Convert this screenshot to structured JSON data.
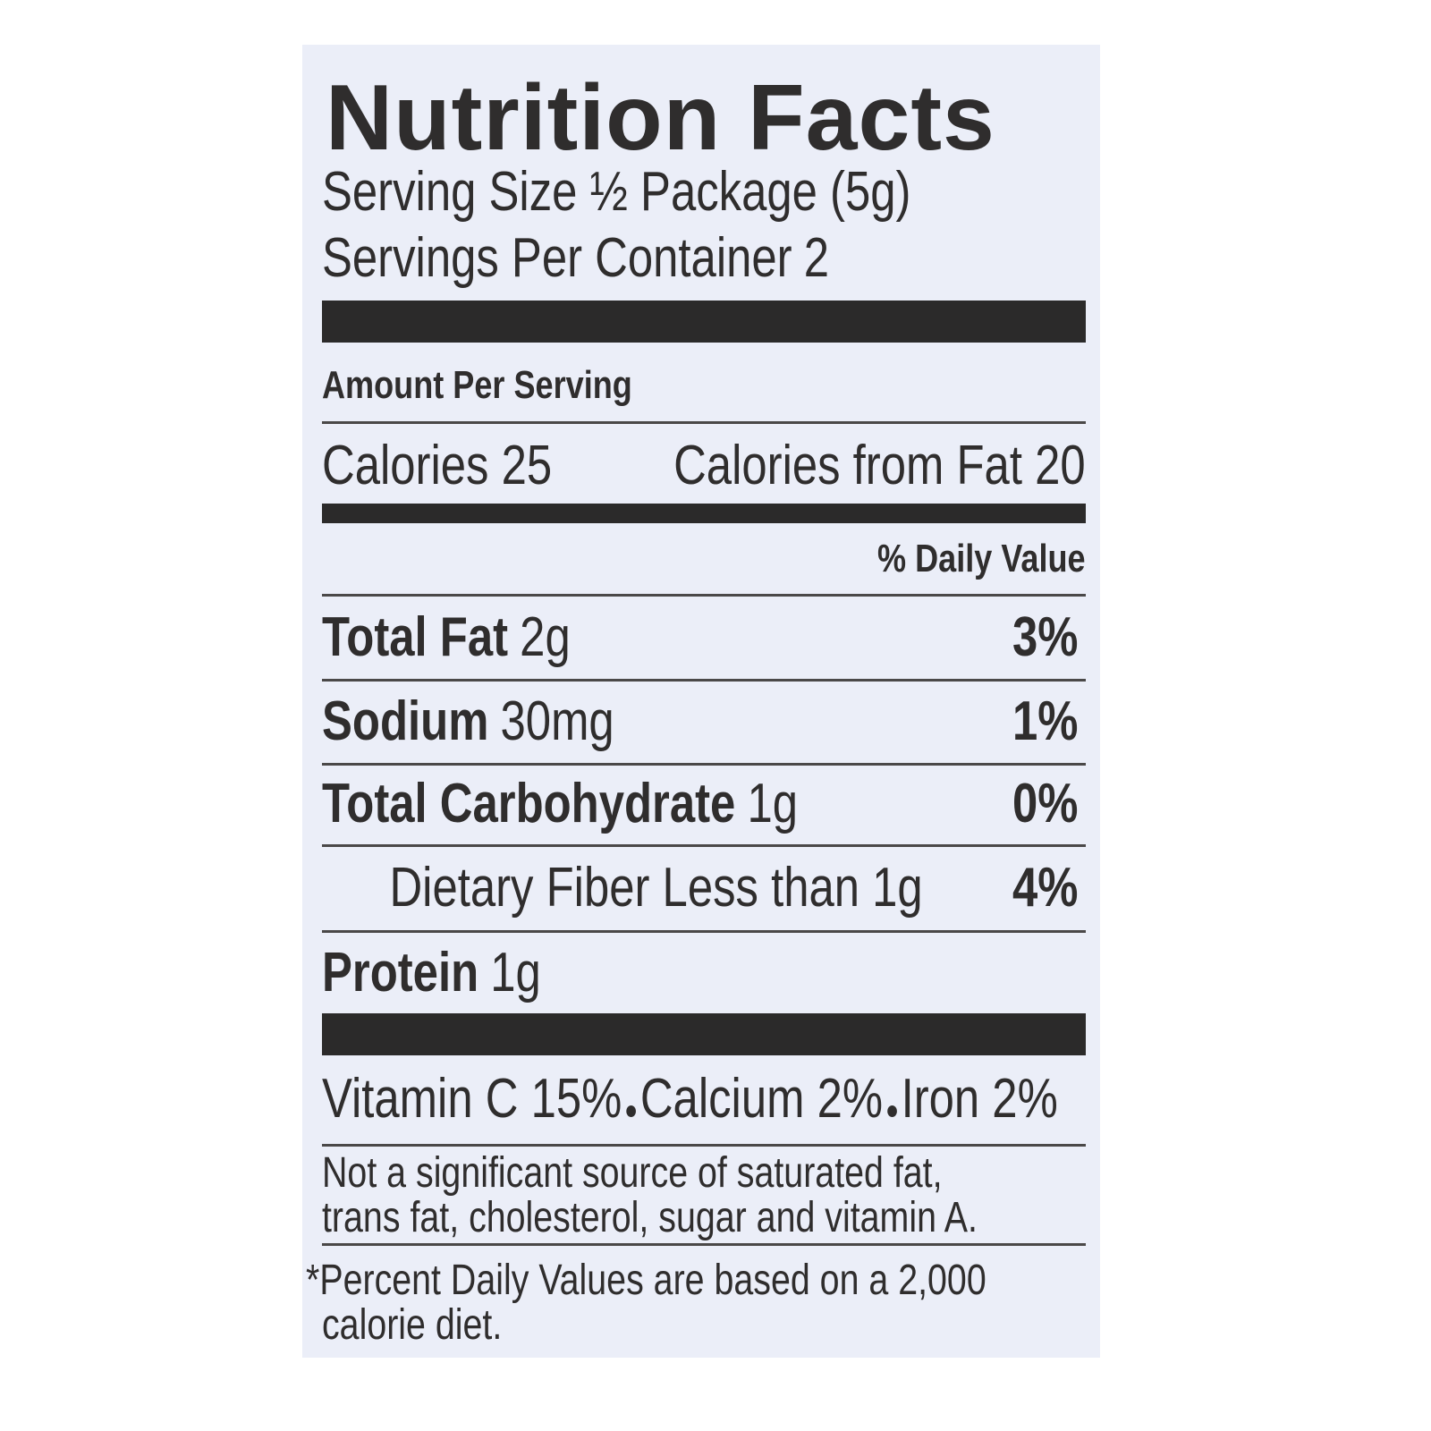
{
  "title": "Nutrition Facts",
  "serving_size": "Serving Size ½ Package (5g)",
  "servings_per_container": {
    "label": "Servings Per Container",
    "value": "2"
  },
  "amount_per_serving": "Amount Per Serving",
  "calories": "Calories 25",
  "calories_from_fat": "Calories from Fat 20",
  "daily_value_header": "% Daily Value",
  "nutrients": [
    {
      "name": "Total Fat",
      "amount": "2g",
      "dv": "3%"
    },
    {
      "name": "Sodium",
      "amount": "30mg",
      "dv": "1%"
    },
    {
      "name": "Total Carbohydrate",
      "amount": "1g",
      "dv": "0%"
    },
    {
      "name": "Dietary Fiber Less than 1g",
      "dv": "4%"
    },
    {
      "name": "Protein",
      "amount": "1g"
    }
  ],
  "vitamins": [
    "Vitamin C 15%",
    "Calcium 2%",
    "Iron 2%"
  ],
  "note": [
    "Not a significant source of saturated fat,",
    "trans fat, cholesterol, sugar and vitamin A."
  ],
  "footnote": [
    "*Percent Daily Values are based on a 2,000",
    "calorie diet."
  ]
}
